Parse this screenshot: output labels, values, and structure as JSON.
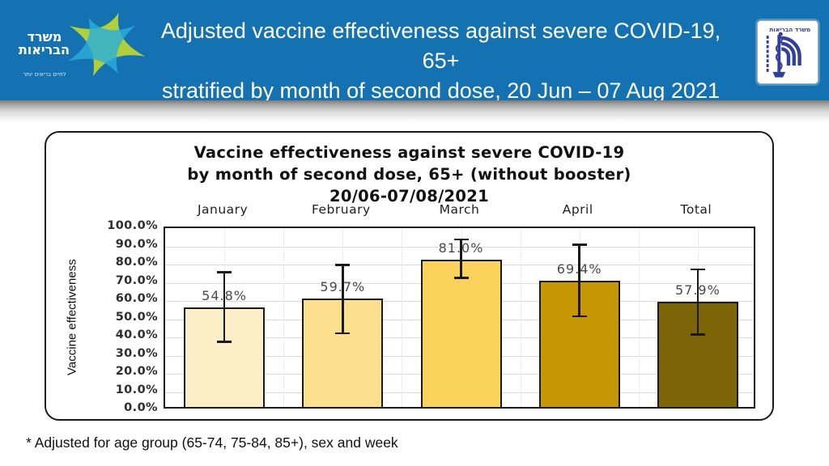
{
  "header": {
    "bg_color": "#1472B2",
    "title_line1": "Adjusted vaccine effectiveness against severe COVID-19, 65+",
    "title_line2": "stratified by month of second dose, 20 Jun – 07 Aug 2021",
    "left_logo": {
      "name_line1": "משרד",
      "name_line2": "הבריאות",
      "tagline": "לחיים בריאים יותר",
      "star_teal": "#2BAFD9",
      "star_green": "#B9D434"
    },
    "right_logo": {
      "caption": "משרד הבריאות",
      "emblem_color": "#31409B"
    }
  },
  "footnote": "* Adjusted for age group (65-74, 75-84, 85+), sex and week",
  "chart_data": {
    "type": "bar",
    "title_lines": [
      "Vaccine effectiveness against severe COVID-19",
      "by month of second dose, 65+ (without booster)",
      "20/06-07/08/2021"
    ],
    "ylabel": "Vaccine effectiveness",
    "xlabel": "",
    "categories": [
      "January",
      "February",
      "March",
      "April",
      "Total"
    ],
    "values": [
      54.8,
      59.7,
      81.0,
      69.4,
      57.9
    ],
    "value_labels": [
      "54.8%",
      "59.7%",
      "81.0%",
      "69.4%",
      "57.9%"
    ],
    "error_low": [
      36,
      40.5,
      71,
      50,
      40
    ],
    "error_high": [
      74,
      78,
      92,
      89,
      75.5
    ],
    "bar_colors": [
      "#FCEFC8",
      "#FCE08E",
      "#FBD25C",
      "#C69605",
      "#7B6506"
    ],
    "ylim": [
      0,
      100
    ],
    "ytick_labels": [
      "100.0%",
      "90.0%",
      "80.0%",
      "70.0%",
      "60.0%",
      "50.0%",
      "40.0%",
      "30.0%",
      "20.0%",
      "10.0%",
      "0.0%"
    ],
    "grid": true,
    "legend": false
  }
}
